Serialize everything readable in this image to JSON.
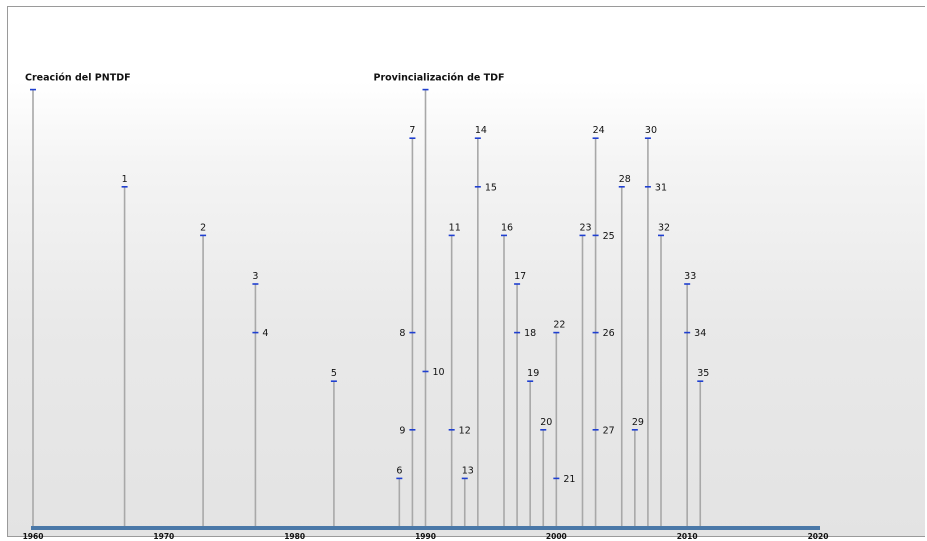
{
  "chart_data": {
    "type": "timeline",
    "xlim": [
      1960,
      2020
    ],
    "x_ticks": [
      "1960",
      "1970",
      "1980",
      "1990",
      "2000",
      "2010",
      "2020"
    ],
    "annotations": [
      {
        "year": 1960,
        "level": 9,
        "text": "Creación del PNTDF"
      },
      {
        "year": 1990,
        "level": 9,
        "text": "Provincialización de TDF"
      }
    ],
    "events": [
      {
        "label": "1",
        "year": 1967,
        "level": 7
      },
      {
        "label": "2",
        "year": 1973,
        "level": 6
      },
      {
        "label": "3",
        "year": 1977,
        "level": 5
      },
      {
        "label": "4",
        "year": 1977,
        "level": 4
      },
      {
        "label": "5",
        "year": 1983,
        "level": 3
      },
      {
        "label": "6",
        "year": 1988,
        "level": 1
      },
      {
        "label": "7",
        "year": 1989,
        "level": 8
      },
      {
        "label": "8",
        "year": 1989,
        "level": 4
      },
      {
        "label": "9",
        "year": 1989,
        "level": 2
      },
      {
        "label": "10",
        "year": 1990,
        "level": 3.2
      },
      {
        "label": "11",
        "year": 1992,
        "level": 6
      },
      {
        "label": "12",
        "year": 1992,
        "level": 2
      },
      {
        "label": "13",
        "year": 1993,
        "level": 1
      },
      {
        "label": "14",
        "year": 1994,
        "level": 8
      },
      {
        "label": "15",
        "year": 1994,
        "level": 7
      },
      {
        "label": "16",
        "year": 1996,
        "level": 6
      },
      {
        "label": "17",
        "year": 1997,
        "level": 5
      },
      {
        "label": "18",
        "year": 1997,
        "level": 4
      },
      {
        "label": "19",
        "year": 1998,
        "level": 3
      },
      {
        "label": "20",
        "year": 1999,
        "level": 2
      },
      {
        "label": "21",
        "year": 2000,
        "level": 1
      },
      {
        "label": "22",
        "year": 2000,
        "level": 4
      },
      {
        "label": "23",
        "year": 2002,
        "level": 6
      },
      {
        "label": "24",
        "year": 2003,
        "level": 8
      },
      {
        "label": "25",
        "year": 2003,
        "level": 6
      },
      {
        "label": "26",
        "year": 2003,
        "level": 4
      },
      {
        "label": "27",
        "year": 2003,
        "level": 2
      },
      {
        "label": "28",
        "year": 2005,
        "level": 7
      },
      {
        "label": "29",
        "year": 2006,
        "level": 2
      },
      {
        "label": "30",
        "year": 2007,
        "level": 8
      },
      {
        "label": "31",
        "year": 2007,
        "level": 7
      },
      {
        "label": "32",
        "year": 2008,
        "level": 6
      },
      {
        "label": "33",
        "year": 2010,
        "level": 5
      },
      {
        "label": "34",
        "year": 2010,
        "level": 4
      },
      {
        "label": "35",
        "year": 2011,
        "level": 3
      }
    ],
    "colors": {
      "axis": "#4a78a8",
      "stem": "#a8a8a8",
      "marker": "#1f3fd0"
    }
  }
}
